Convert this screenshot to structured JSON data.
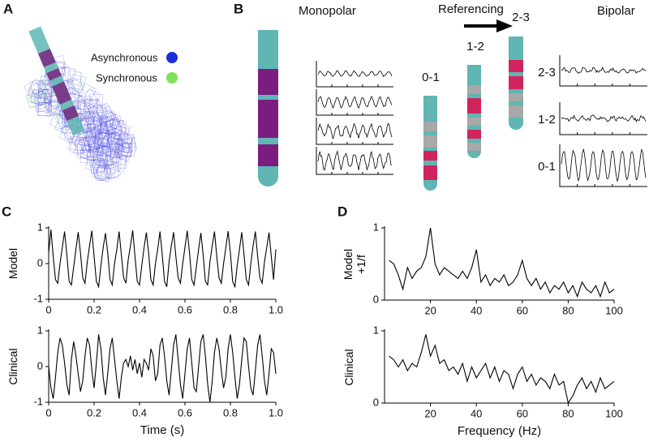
{
  "panel_labels": [
    "A",
    "B",
    "C",
    "D"
  ],
  "panel_a": {
    "legend": [
      "Asynchronous",
      "Synchronous"
    ]
  },
  "panel_b": {
    "monopolar": "Monopolar",
    "referencing": "Referencing",
    "bipolar": "Bipolar",
    "electrode_labels": [
      "0-1",
      "1-2",
      "2-3"
    ],
    "bipolar_labels": [
      "2-3",
      "1-2",
      "0-1"
    ]
  },
  "chart_data": [
    {
      "type": "line",
      "ylabel": "Model",
      "color": "#000000",
      "x": [
        0,
        0.01,
        0.02,
        0.03,
        0.04,
        0.05,
        0.06,
        0.07,
        0.08,
        0.09,
        0.1,
        0.11,
        0.12,
        0.13,
        0.14,
        0.15,
        0.16,
        0.17,
        0.18,
        0.19,
        0.2,
        0.21,
        0.22,
        0.23,
        0.24,
        0.25,
        0.26,
        0.27,
        0.28,
        0.29,
        0.3,
        0.31,
        0.32,
        0.33,
        0.34,
        0.35,
        0.36,
        0.37,
        0.38,
        0.39,
        0.4,
        0.41,
        0.42,
        0.43,
        0.44,
        0.45,
        0.46,
        0.47,
        0.48,
        0.49,
        0.5,
        0.51,
        0.52,
        0.53,
        0.54,
        0.55,
        0.56,
        0.57,
        0.58,
        0.59,
        0.6,
        0.61,
        0.62,
        0.63,
        0.64,
        0.65,
        0.66,
        0.67,
        0.68,
        0.69,
        0.7,
        0.71,
        0.72,
        0.73,
        0.74,
        0.75,
        0.76,
        0.77,
        0.78,
        0.79,
        0.8,
        0.81,
        0.82,
        0.83,
        0.84,
        0.85,
        0.86,
        0.87,
        0.88,
        0.89,
        0.9,
        0.91,
        0.92,
        0.93,
        0.94,
        0.95,
        0.96,
        0.97,
        0.98,
        0.99,
        1
      ],
      "values": [
        0.3,
        0.95,
        0.2,
        -0.45,
        -0.55,
        0,
        0.45,
        0.9,
        0.25,
        -0.5,
        -0.6,
        -0.1,
        0.4,
        0.88,
        0.3,
        -0.4,
        -0.55,
        0.05,
        0.5,
        0.92,
        0.2,
        -0.5,
        -0.65,
        -0.05,
        0.45,
        0.85,
        0.3,
        -0.45,
        -0.6,
        0,
        0.4,
        0.9,
        0.25,
        -0.4,
        -0.55,
        0.1,
        0.5,
        0.93,
        0.2,
        -0.5,
        -0.6,
        -0.05,
        0.45,
        0.87,
        0.3,
        -0.45,
        -0.6,
        0,
        0.4,
        0.9,
        0.25,
        -0.5,
        -0.65,
        0.05,
        0.5,
        0.88,
        0.2,
        -0.4,
        -0.55,
        0,
        0.45,
        0.92,
        0.3,
        -0.45,
        -0.6,
        -0.1,
        0.4,
        0.86,
        0.25,
        -0.5,
        -0.6,
        0.05,
        0.5,
        0.9,
        0.2,
        -0.4,
        -0.55,
        0,
        0.45,
        0.91,
        0.3,
        -0.5,
        -0.65,
        -0.05,
        0.4,
        0.88,
        0.25,
        -0.45,
        -0.6,
        0,
        0.5,
        0.9,
        0.2,
        -0.4,
        -0.55,
        0.05,
        0.45,
        0.87,
        0.2,
        -0.45,
        0.4
      ],
      "xlim": [
        0,
        1
      ],
      "xticks": [
        0,
        0.2,
        0.4,
        0.6,
        0.8,
        {
          "value": 1,
          "label": "1.0"
        }
      ],
      "ylim": [
        -1,
        1
      ],
      "yticks": [
        -1,
        0,
        1
      ]
    },
    {
      "type": "line",
      "ylabel": "Clinical",
      "xlabel": "Time (s)",
      "color": "#000000",
      "x": [
        0,
        0.01,
        0.02,
        0.03,
        0.04,
        0.05,
        0.06,
        0.07,
        0.08,
        0.09,
        0.1,
        0.11,
        0.12,
        0.13,
        0.14,
        0.15,
        0.16,
        0.17,
        0.18,
        0.19,
        0.2,
        0.21,
        0.22,
        0.23,
        0.24,
        0.25,
        0.26,
        0.27,
        0.28,
        0.29,
        0.3,
        0.31,
        0.32,
        0.33,
        0.34,
        0.35,
        0.36,
        0.37,
        0.38,
        0.39,
        0.4,
        0.41,
        0.42,
        0.43,
        0.44,
        0.45,
        0.46,
        0.47,
        0.48,
        0.49,
        0.5,
        0.51,
        0.52,
        0.53,
        0.54,
        0.55,
        0.56,
        0.57,
        0.58,
        0.59,
        0.6,
        0.61,
        0.62,
        0.63,
        0.64,
        0.65,
        0.66,
        0.67,
        0.68,
        0.69,
        0.7,
        0.71,
        0.72,
        0.73,
        0.74,
        0.75,
        0.76,
        0.77,
        0.78,
        0.79,
        0.8,
        0.81,
        0.82,
        0.83,
        0.84,
        0.85,
        0.86,
        0.87,
        0.88,
        0.89,
        0.9,
        0.91,
        0.92,
        0.93,
        0.94,
        0.95,
        0.96,
        0.97,
        0.98,
        0.99,
        1
      ],
      "values": [
        0,
        -0.6,
        -0.9,
        -0.3,
        0.4,
        0.8,
        0.6,
        0.1,
        -0.5,
        -0.8,
        0.2,
        0.7,
        0.3,
        -0.2,
        -0.7,
        -0.4,
        0.3,
        0.8,
        0.6,
        -0.1,
        -0.6,
        0.1,
        0.9,
        0.5,
        -0.3,
        -0.8,
        -0.2,
        0.5,
        0.8,
        0.2,
        -0.4,
        -0.9,
        -0.3,
        0.1,
        0.2,
        0,
        0.3,
        -0.1,
        0.2,
        -0.2,
        0.1,
        -0.3,
        0.2,
        0.1,
        -0.1,
        0.5,
        0.3,
        -0.4,
        -0.2,
        0.6,
        0.8,
        0.3,
        -0.4,
        -0.8,
        -0.1,
        0.6,
        0.9,
        0.2,
        -0.5,
        -0.9,
        -0.2,
        0.5,
        0.8,
        0.1,
        -0.6,
        -0.7,
        0,
        0.7,
        0.9,
        0.3,
        -0.5,
        -1,
        -0.4,
        0.4,
        0.8,
        0.5,
        -0.1,
        -0.6,
        -0.3,
        0.5,
        0.9,
        0.4,
        -0.3,
        -0.9,
        -0.5,
        0.2,
        0.8,
        0.7,
        0,
        -0.6,
        -0.8,
        -0.1,
        0.6,
        0.9,
        0.3,
        -0.4,
        -0.8,
        -0.2,
        0.5,
        0.4,
        -0.2
      ],
      "xlim": [
        0,
        1
      ],
      "xticks": [
        0,
        0.2,
        0.4,
        0.6,
        0.8,
        {
          "value": 1,
          "label": "1.0"
        }
      ],
      "ylim": [
        -1,
        1
      ],
      "yticks": [
        -1,
        0,
        1
      ]
    },
    {
      "type": "line",
      "ylabel": "Model +1/f",
      "color": "#000000",
      "x": [
        2,
        4,
        6,
        8,
        10,
        12,
        14,
        16,
        18,
        20,
        22,
        24,
        26,
        28,
        30,
        32,
        34,
        36,
        38,
        40,
        42,
        44,
        46,
        48,
        50,
        52,
        54,
        56,
        58,
        60,
        62,
        64,
        66,
        68,
        70,
        72,
        74,
        76,
        78,
        80,
        82,
        84,
        86,
        88,
        90,
        92,
        94,
        96,
        98,
        100
      ],
      "values": [
        0.55,
        0.5,
        0.35,
        0.15,
        0.45,
        0.3,
        0.4,
        0.45,
        0.6,
        1,
        0.5,
        0.35,
        0.45,
        0.4,
        0.35,
        0.3,
        0.4,
        0.3,
        0.45,
        0.7,
        0.25,
        0.35,
        0.2,
        0.3,
        0.25,
        0.35,
        0.2,
        0.25,
        0.35,
        0.55,
        0.3,
        0.2,
        0.3,
        0.15,
        0.25,
        0.1,
        0.2,
        0.15,
        0.25,
        0.1,
        0.2,
        0.05,
        0.25,
        0.15,
        0.1,
        0.2,
        0.05,
        0.25,
        0.1,
        0.15
      ],
      "xlim": [
        0,
        100
      ],
      "xticks": [
        20,
        40,
        60,
        80,
        100
      ],
      "ylim": [
        0,
        1
      ],
      "yticks": [
        0,
        1
      ]
    },
    {
      "type": "line",
      "ylabel": "Clinical",
      "xlabel": "Frequency (Hz)",
      "color": "#000000",
      "x": [
        2,
        4,
        6,
        8,
        10,
        12,
        14,
        16,
        18,
        20,
        22,
        24,
        26,
        28,
        30,
        32,
        34,
        36,
        38,
        40,
        42,
        44,
        46,
        48,
        50,
        52,
        54,
        56,
        58,
        60,
        62,
        64,
        66,
        68,
        70,
        72,
        74,
        76,
        78,
        80,
        82,
        84,
        86,
        88,
        90,
        92,
        94,
        96,
        98,
        100
      ],
      "values": [
        0.65,
        0.6,
        0.5,
        0.6,
        0.45,
        0.55,
        0.5,
        0.7,
        0.95,
        0.65,
        0.8,
        0.55,
        0.6,
        0.45,
        0.5,
        0.4,
        0.55,
        0.3,
        0.5,
        0.35,
        0.45,
        0.55,
        0.35,
        0.5,
        0.3,
        0.45,
        0.4,
        0.2,
        0.4,
        0.5,
        0.3,
        0.4,
        0.25,
        0.35,
        0.3,
        0.2,
        0.4,
        0.25,
        0.3,
        0,
        0.1,
        0.25,
        0.35,
        0.2,
        0.3,
        0.15,
        0.35,
        0.2,
        0.25,
        0.3
      ],
      "xlim": [
        0,
        100
      ],
      "xticks": [
        20,
        40,
        60,
        80,
        100
      ],
      "ylim": [
        0,
        1
      ],
      "yticks": [
        0,
        1
      ]
    }
  ]
}
